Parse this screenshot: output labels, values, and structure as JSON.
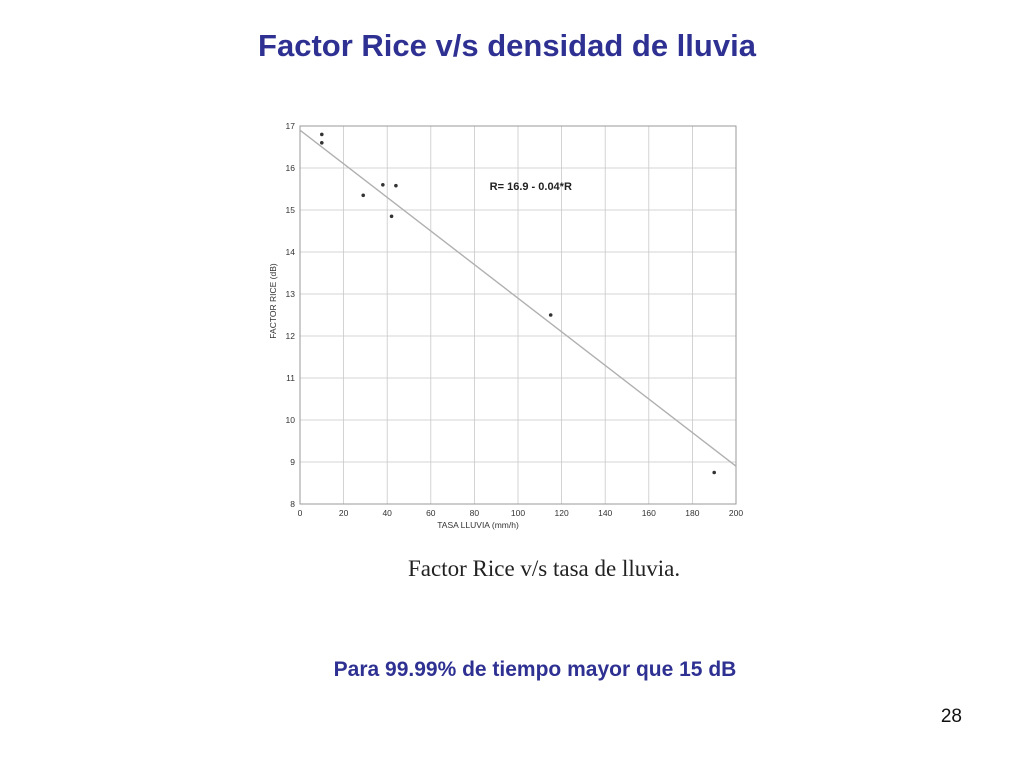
{
  "slide": {
    "title": "Factor Rice v/s densidad de lluvia",
    "caption": "Factor Rice v/s tasa de lluvia.",
    "note": "Para 99.99% de tiempo mayor que 15 dB",
    "page_number": "28"
  },
  "colors": {
    "title": "#2e3192",
    "grid": "#c8c8c8",
    "fit_line": "#b0b0b0",
    "points": "#333333"
  },
  "chart_data": {
    "type": "scatter",
    "title": "",
    "xlabel": "TASA LLUVIA (mm/h)",
    "ylabel": "FACTOR RICE (dB)",
    "xlim": [
      0,
      200
    ],
    "ylim": [
      8,
      17
    ],
    "xticks": [
      0,
      20,
      40,
      60,
      80,
      100,
      120,
      140,
      160,
      180,
      200
    ],
    "yticks": [
      8,
      9,
      10,
      11,
      12,
      13,
      14,
      15,
      16,
      17
    ],
    "grid": true,
    "series": [
      {
        "points": [
          {
            "x": 10,
            "y": 16.8
          },
          {
            "x": 10,
            "y": 16.6
          },
          {
            "x": 29,
            "y": 15.35
          },
          {
            "x": 38,
            "y": 15.6
          },
          {
            "x": 42,
            "y": 14.85
          },
          {
            "x": 44,
            "y": 15.58
          },
          {
            "x": 115,
            "y": 12.5
          },
          {
            "x": 190,
            "y": 8.75
          }
        ]
      }
    ],
    "fit": {
      "x": [
        0,
        200
      ],
      "y": [
        16.9,
        8.9
      ]
    },
    "annotation": "R= 16.9 - 0.04*R"
  }
}
